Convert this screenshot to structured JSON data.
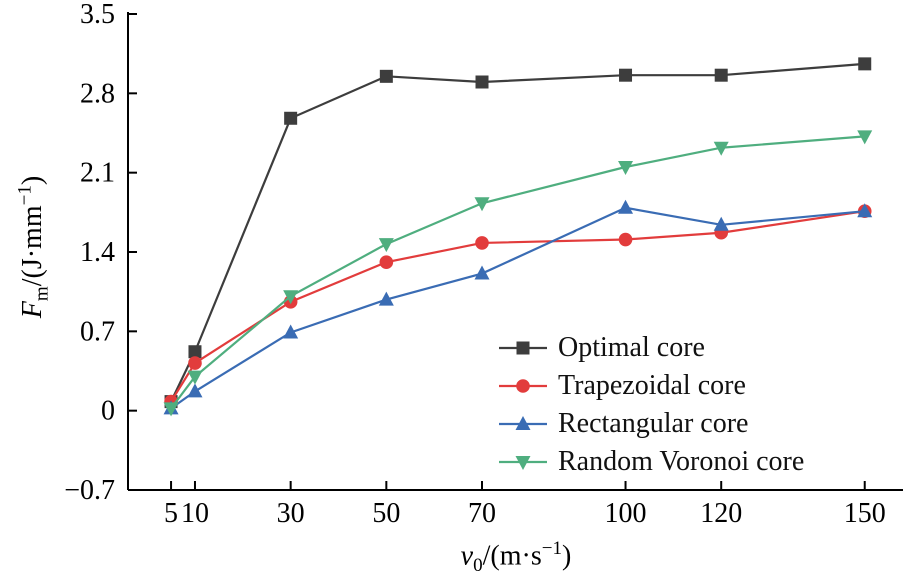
{
  "figure": {
    "background": "#ffffff",
    "axis_color": "#000000",
    "text_color": "#000000"
  },
  "chart_data": {
    "type": "line",
    "title": "",
    "xlabel_parts": {
      "var": "v",
      "sub": "0",
      "mid": "/(m·s",
      "sup": "−1",
      "post": ")"
    },
    "ylabel_parts": {
      "var": "F",
      "sub": "m",
      "mid": "/(J·mm",
      "sup": "−1",
      "post": ")"
    },
    "xlim": [
      -4,
      158
    ],
    "ylim": [
      -0.7,
      3.5
    ],
    "xticks": [
      5,
      10,
      30,
      50,
      70,
      100,
      120,
      150
    ],
    "xtick_labels": [
      "5",
      "10",
      "30",
      "50",
      "70",
      "100",
      "120",
      "150"
    ],
    "yticks": [
      -0.7,
      0,
      0.7,
      1.4,
      2.1,
      2.8,
      3.5
    ],
    "ytick_labels": [
      "−0.7",
      "0",
      "0.7",
      "1.4",
      "2.1",
      "2.8",
      "3.5"
    ],
    "grid": false,
    "legend_position": "inside-lower-right",
    "x": [
      5,
      10,
      30,
      50,
      70,
      100,
      120,
      150
    ],
    "series": [
      {
        "name": "Optimal core",
        "color": "#3d3d3d",
        "marker": "square",
        "values": [
          0.08,
          0.52,
          2.58,
          2.95,
          2.9,
          2.96,
          2.96,
          3.06
        ]
      },
      {
        "name": "Trapezoidal core",
        "color": "#e23c3c",
        "marker": "circle",
        "values": [
          0.08,
          0.42,
          0.96,
          1.31,
          1.48,
          1.51,
          1.57,
          1.76
        ]
      },
      {
        "name": "Rectangular core",
        "color": "#3a6cb4",
        "marker": "triangle-up",
        "values": [
          0.02,
          0.17,
          0.69,
          0.98,
          1.21,
          1.79,
          1.64,
          1.76
        ]
      },
      {
        "name": "Random Voronoi core",
        "color": "#4fae7f",
        "marker": "triangle-down",
        "values": [
          0.02,
          0.3,
          1.01,
          1.47,
          1.83,
          2.15,
          2.32,
          2.42
        ]
      }
    ]
  }
}
